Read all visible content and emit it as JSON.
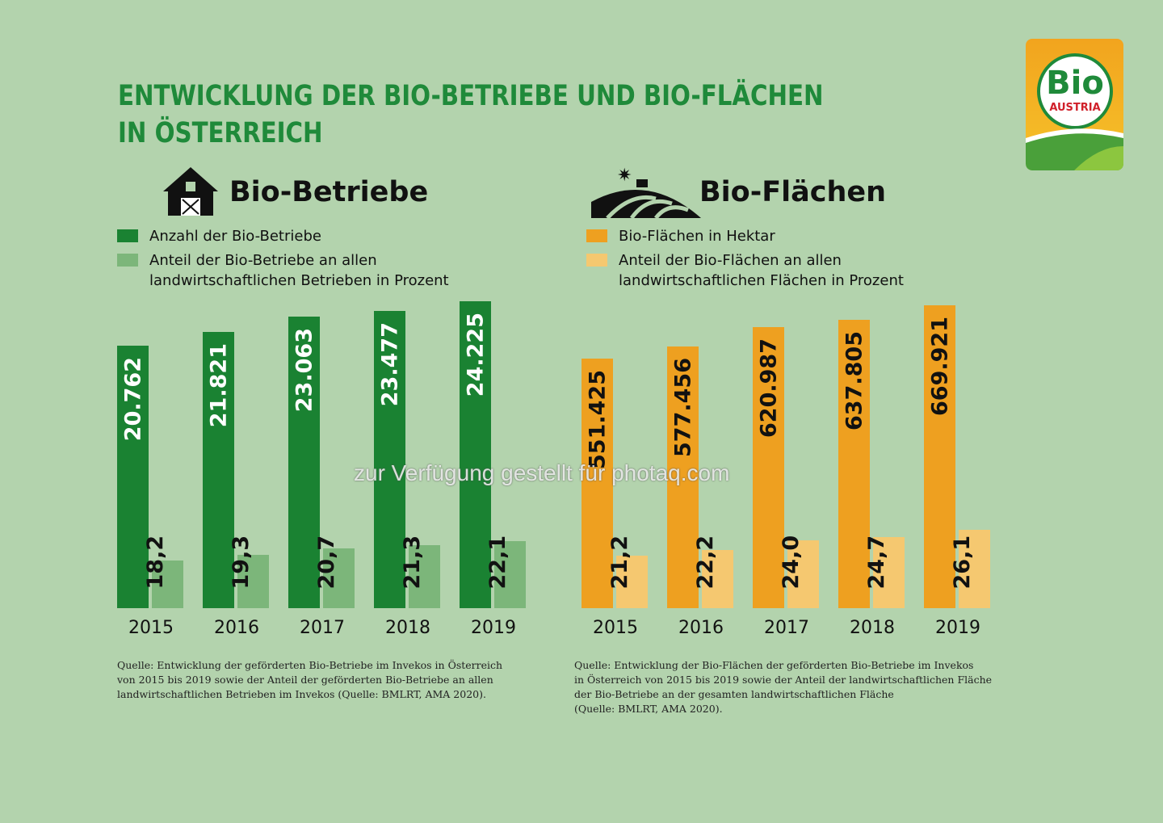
{
  "title_lines": [
    "ENTWICKLUNG DER BIO-BETRIEBE UND BIO-FLÄCHEN",
    "IN ÖSTERREICH"
  ],
  "logo": {
    "text": "Bio",
    "subtext": "AUSTRIA"
  },
  "watermark": "zur Verfügung gestellt für photaq.com",
  "chart_data": [
    {
      "type": "bar",
      "title": "Bio-Betriebe",
      "icon": "barn-icon",
      "categories": [
        "2015",
        "2016",
        "2017",
        "2018",
        "2019"
      ],
      "series": [
        {
          "name": "Anzahl der Bio-Betriebe",
          "color": "#1a8232",
          "values": [
            20762,
            21821,
            23063,
            23477,
            24225
          ],
          "labels": [
            "20.762",
            "21.821",
            "23.063",
            "23.477",
            "24.225"
          ]
        },
        {
          "name": "Anteil der Bio-Betriebe an allen landwirtschaftlichen Betrieben in Prozent",
          "color": "#7cb67a",
          "values": [
            18.2,
            19.3,
            20.7,
            21.3,
            22.1
          ],
          "labels": [
            "18,2",
            "19,3",
            "20,7",
            "21,3",
            "22,1"
          ]
        }
      ],
      "legend_lines": [
        [
          "Anzahl der Bio-Betriebe"
        ],
        [
          "Anteil der Bio-Betriebe an allen",
          "landwirtschaftlichen Betrieben in Prozent"
        ]
      ],
      "source": [
        "Quelle: Entwicklung der geförderten Bio-Betriebe im Invekos in Österreich",
        "von 2015 bis 2019 sowie der Anteil der geförderten Bio-Betriebe an allen",
        "landwirtschaftlichen Betrieben im Invekos (Quelle: BMLRT, AMA 2020)."
      ]
    },
    {
      "type": "bar",
      "title": "Bio-Flächen",
      "icon": "field-tractor-icon",
      "categories": [
        "2015",
        "2016",
        "2017",
        "2018",
        "2019"
      ],
      "series": [
        {
          "name": "Bio-Flächen in Hektar",
          "color": "#eea020",
          "values": [
            551425,
            577456,
            620987,
            637805,
            669921
          ],
          "labels": [
            "551.425",
            "577.456",
            "620.987",
            "637.805",
            "669.921"
          ]
        },
        {
          "name": "Anteil der Bio-Flächen an allen landwirtschaftlichen Flächen in Prozent",
          "color": "#f5c870",
          "values": [
            21.2,
            22.2,
            24.0,
            24.7,
            26.1
          ],
          "labels": [
            "21,2",
            "22,2",
            "24,0",
            "24,7",
            "26,1"
          ]
        }
      ],
      "legend_lines": [
        [
          "Bio-Flächen in Hektar"
        ],
        [
          "Anteil der Bio-Flächen an allen",
          "landwirtschaftlichen Flächen in Prozent"
        ]
      ],
      "source": [
        "Quelle: Entwicklung der Bio-Flächen der geförderten Bio-Betriebe im Invekos",
        "in Österreich von 2015 bis 2019 sowie der Anteil der landwirtschaftlichen Fläche",
        "der Bio-Betriebe an der gesamten landwirtschaftlichen Fläche",
        "(Quelle: BMLRT, AMA 2020)."
      ]
    }
  ]
}
